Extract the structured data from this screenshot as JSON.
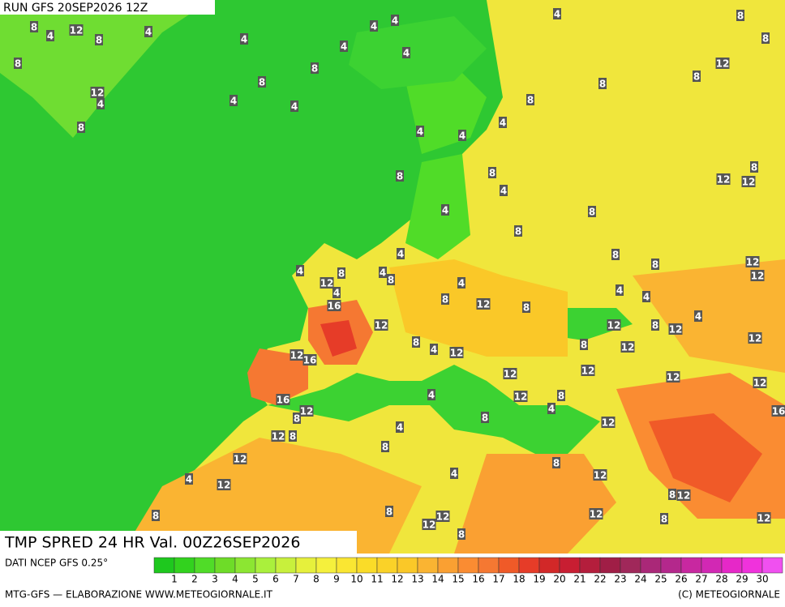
{
  "header": {
    "run": "RUN GFS 20SEP2026 12Z"
  },
  "map": {
    "title": "TMP SPRED 24 HR Val. 00Z26SEP2026",
    "labels": [
      "8",
      "4",
      "12",
      "8",
      "4",
      "8",
      "12",
      "4",
      "8",
      "4",
      "8",
      "4",
      "4",
      "8",
      "4",
      "4",
      "4",
      "4",
      "4",
      "8",
      "8",
      "12",
      "8",
      "8",
      "8",
      "4",
      "4",
      "4",
      "8",
      "8",
      "4",
      "8",
      "12",
      "12",
      "8",
      "4",
      "8",
      "4",
      "4",
      "8",
      "12",
      "4",
      "4",
      "8",
      "4",
      "8",
      "8",
      "12",
      "12",
      "16",
      "8",
      "12",
      "8",
      "4",
      "4",
      "12",
      "8",
      "4",
      "12",
      "12",
      "8",
      "12",
      "4",
      "12",
      "8",
      "12",
      "12",
      "16",
      "12",
      "12",
      "12",
      "12",
      "16",
      "12",
      "8",
      "4",
      "12",
      "8",
      "4",
      "8",
      "12",
      "16",
      "12",
      "8",
      "4",
      "8",
      "12",
      "4",
      "12",
      "4",
      "8",
      "12",
      "8",
      "12",
      "8",
      "8",
      "12",
      "12",
      "8",
      "12",
      "8",
      "12"
    ]
  },
  "legend": {
    "source": "DATI NCEP GFS 0.25°",
    "ticks": [
      1,
      2,
      3,
      4,
      5,
      6,
      7,
      8,
      9,
      10,
      11,
      12,
      13,
      14,
      15,
      16,
      17,
      18,
      19,
      20,
      21,
      22,
      23,
      24,
      25,
      26,
      27,
      28,
      29,
      30
    ],
    "colors": [
      "#1ec81e",
      "#32d21e",
      "#50dc28",
      "#6edc28",
      "#8ce632",
      "#aaf03c",
      "#c8f03c",
      "#e6f03c",
      "#f5f03c",
      "#fae632",
      "#fadc28",
      "#fad228",
      "#fac828",
      "#fab432",
      "#faa032",
      "#fa8c32",
      "#f57832",
      "#f05a28",
      "#e63c28",
      "#d22828",
      "#c81e32",
      "#b41e3c",
      "#a01e46",
      "#a0285a",
      "#aa2878",
      "#b4288c",
      "#c828a0",
      "#d228b4",
      "#e628c8",
      "#f032dc",
      "#f050f0"
    ]
  },
  "footer": {
    "left": "MTG-GFS — ELABORAZIONE WWW.METEOGIORNALE.IT",
    "right": "(C) METEOGIORNALE"
  }
}
